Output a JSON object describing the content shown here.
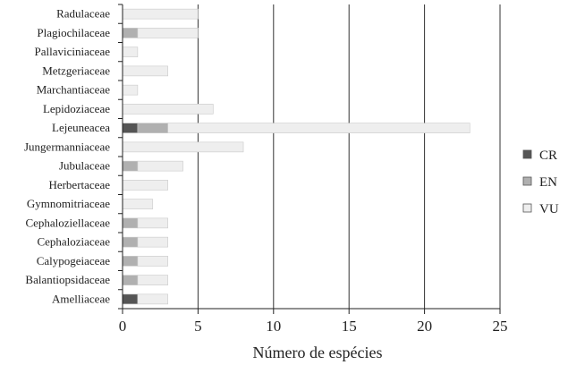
{
  "chart_data": {
    "type": "bar",
    "orientation": "horizontal",
    "stacked": true,
    "categories": [
      "Radulaceae",
      "Plagiochilaceae",
      "Pallaviciniaceae",
      "Metzgeriaceae",
      "Marchantiaceae",
      "Lepidoziaceae",
      "Lejeuneacea",
      "Jungermanniaceae",
      "Jubulaceae",
      "Herbertaceae",
      "Gymnomitriaceae",
      "Cephaloziellaceae",
      "Cephaloziaceae",
      "Calypogeiaceae",
      "Balantiopsidaceae",
      "Amelliaceae"
    ],
    "series": [
      {
        "name": "CR",
        "color": "#555555",
        "values": [
          0,
          0,
          0,
          0,
          0,
          0,
          1,
          0,
          0,
          0,
          0,
          0,
          0,
          0,
          0,
          1
        ]
      },
      {
        "name": "EN",
        "color": "#b0b0b0",
        "values": [
          0,
          1,
          0,
          0,
          0,
          0,
          2,
          0,
          1,
          0,
          0,
          1,
          1,
          1,
          1,
          0
        ]
      },
      {
        "name": "VU",
        "color": "#eeeeee",
        "values": [
          5,
          4,
          1,
          3,
          1,
          6,
          20,
          8,
          3,
          3,
          2,
          2,
          2,
          2,
          2,
          2
        ]
      }
    ],
    "xlabel": "Número de espécies",
    "ylabel": "",
    "title": "",
    "xlim": [
      0,
      25
    ],
    "xticks": [
      0,
      5,
      10,
      15,
      20,
      25
    ],
    "grid": "vertical",
    "legend_position": "right"
  }
}
